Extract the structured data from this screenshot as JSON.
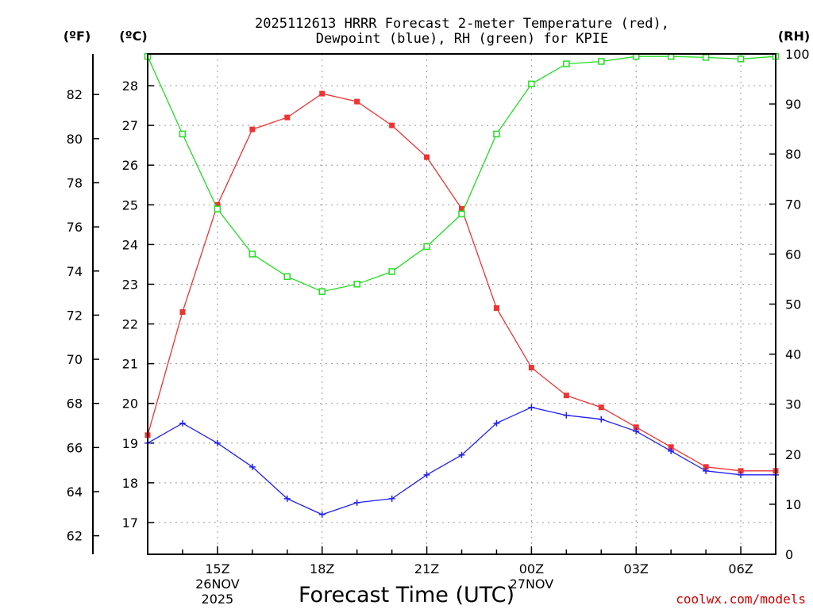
{
  "chart_data": {
    "type": "line",
    "title_lines": [
      "2025112613 HRRR Forecast 2-meter Temperature (red),",
      "Dewpoint (blue), RH (green) for KPIE"
    ],
    "xlabel": "Forecast Time (UTC)",
    "watermark": "coolwx.com/models",
    "units": {
      "f": "(ºF)",
      "c": "(ºC)",
      "rh": "(RH)"
    },
    "x_hours": [
      13,
      14,
      15,
      16,
      17,
      18,
      19,
      20,
      21,
      22,
      23,
      24,
      25,
      26,
      27,
      28,
      29,
      30,
      31
    ],
    "x_ticks": [
      {
        "hour": 15,
        "label": "15Z",
        "sublabels": [
          "26NOV",
          "2025"
        ]
      },
      {
        "hour": 18,
        "label": "18Z",
        "sublabels": []
      },
      {
        "hour": 21,
        "label": "21Z",
        "sublabels": []
      },
      {
        "hour": 24,
        "label": "00Z",
        "sublabels": [
          "27NOV"
        ]
      },
      {
        "hour": 27,
        "label": "03Z",
        "sublabels": []
      },
      {
        "hour": 30,
        "label": "06Z",
        "sublabels": []
      }
    ],
    "xlim": [
      13,
      31
    ],
    "celsius_axis": {
      "ylim": [
        16.2,
        28.8
      ],
      "ticks": [
        17,
        18,
        19,
        20,
        21,
        22,
        23,
        24,
        25,
        26,
        27,
        28
      ]
    },
    "fahrenheit_axis": {
      "ticks": [
        62,
        64,
        66,
        68,
        70,
        72,
        74,
        76,
        78,
        80,
        82
      ]
    },
    "rh_axis": {
      "ylim": [
        0,
        100
      ],
      "ticks": [
        0,
        10,
        20,
        30,
        40,
        50,
        60,
        70,
        80,
        90,
        100
      ]
    },
    "grid": true,
    "series": [
      {
        "name": "Temperature",
        "axis": "celsius",
        "color": "#ee3333",
        "marker": "filled-square",
        "values": [
          19.2,
          22.3,
          25.0,
          26.9,
          27.2,
          27.8,
          27.6,
          27.0,
          26.2,
          24.9,
          22.4,
          20.9,
          20.2,
          19.9,
          19.4,
          18.9,
          18.4,
          18.3,
          18.3
        ]
      },
      {
        "name": "Dewpoint",
        "axis": "celsius",
        "color": "#2222ee",
        "marker": "plus",
        "values": [
          19.0,
          19.5,
          19.0,
          18.4,
          17.6,
          17.2,
          17.5,
          17.6,
          18.2,
          18.7,
          19.5,
          19.9,
          19.7,
          19.6,
          19.3,
          18.8,
          18.3,
          18.2,
          18.2
        ]
      },
      {
        "name": "RH",
        "axis": "rh",
        "color": "#22dd22",
        "marker": "open-square",
        "values": [
          99.5,
          84,
          69,
          60,
          55.5,
          52.5,
          54,
          56.5,
          61.5,
          68,
          84,
          94,
          98,
          98.5,
          99.5,
          99.5,
          99.3,
          99,
          99.5
        ]
      }
    ]
  }
}
